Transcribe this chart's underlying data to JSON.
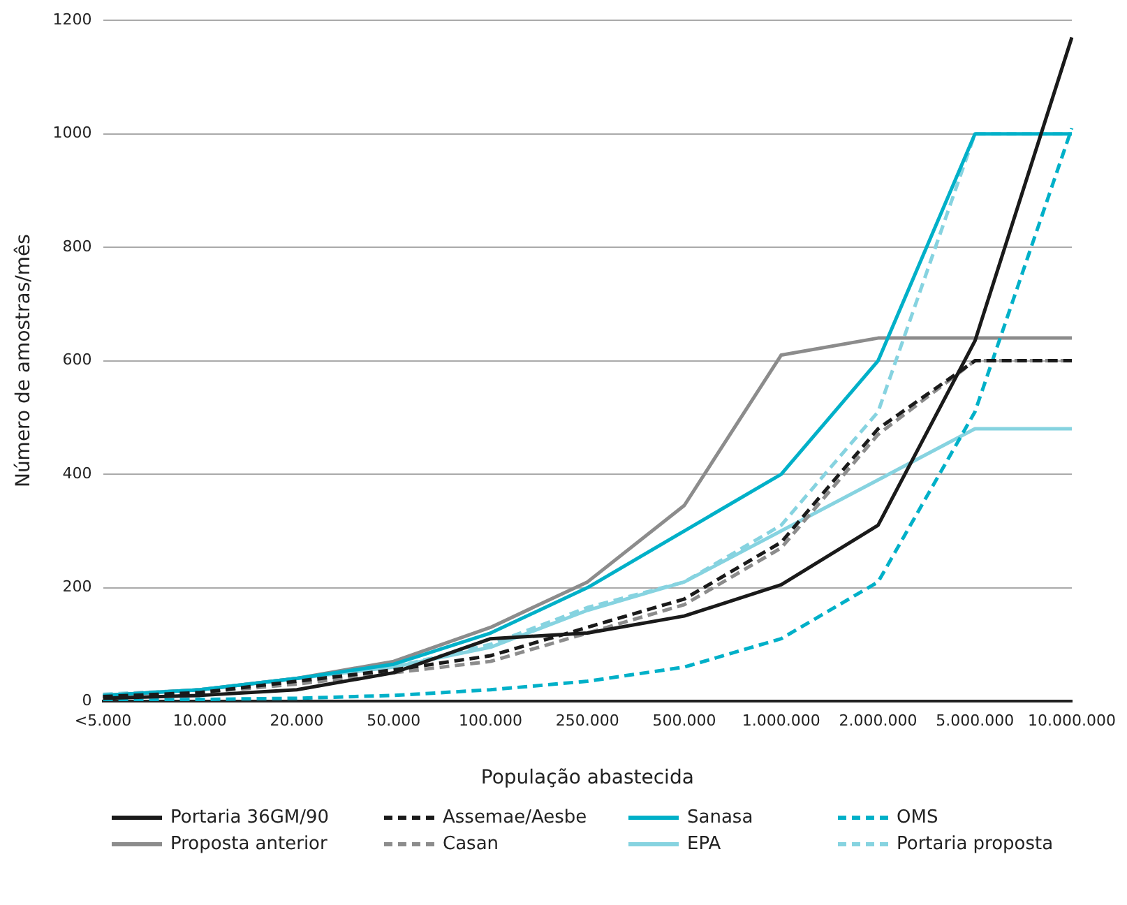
{
  "chart_data": {
    "type": "line",
    "xlabel": "População abastecida",
    "ylabel": "Número de amostras/mês",
    "categories": [
      "<5.000",
      "10.000",
      "20.000",
      "50.000",
      "100.000",
      "250.000",
      "500.000",
      "1.000.000",
      "2.000.000",
      "5.000.000",
      "10.000.000"
    ],
    "ylim": [
      0,
      1200
    ],
    "yticks": [
      0,
      200,
      400,
      600,
      800,
      1000,
      1200
    ],
    "grid": "y",
    "legend": "bottom",
    "marker": "none",
    "series": [
      {
        "name": "Portaria 36GM/90",
        "color": "#1a1a1a",
        "line_style": "solid",
        "values": [
          5,
          10,
          20,
          50,
          110,
          120,
          150,
          205,
          310,
          635,
          1170
        ]
      },
      {
        "name": "Assemae/Aesbe",
        "color": "#1a1a1a",
        "line_style": "dashed",
        "values": [
          8,
          15,
          35,
          55,
          80,
          130,
          180,
          280,
          480,
          600,
          600
        ]
      },
      {
        "name": "Sanasa",
        "color": "#00b0c8",
        "line_style": "solid",
        "values": [
          10,
          20,
          40,
          65,
          120,
          200,
          300,
          400,
          600,
          1000,
          1000
        ]
      },
      {
        "name": "OMS",
        "color": "#00b0c8",
        "line_style": "dashed",
        "values": [
          0,
          3,
          5,
          10,
          20,
          35,
          60,
          110,
          210,
          510,
          1010
        ]
      },
      {
        "name": "Proposta anterior",
        "color": "#8c8c8c",
        "line_style": "solid",
        "values": [
          10,
          20,
          40,
          70,
          130,
          210,
          345,
          610,
          640,
          640,
          640
        ]
      },
      {
        "name": "Casan",
        "color": "#8c8c8c",
        "line_style": "dashed",
        "values": [
          8,
          15,
          30,
          50,
          70,
          120,
          170,
          270,
          470,
          600,
          600
        ]
      },
      {
        "name": "EPA",
        "color": "#86d3e0",
        "line_style": "solid",
        "values": [
          10,
          20,
          40,
          60,
          95,
          160,
          210,
          300,
          390,
          480,
          480
        ]
      },
      {
        "name": "Portaria proposta",
        "color": "#86d3e0",
        "line_style": "dashed",
        "values": [
          12,
          20,
          40,
          60,
          100,
          165,
          210,
          310,
          510,
          1000,
          1000
        ]
      }
    ]
  }
}
